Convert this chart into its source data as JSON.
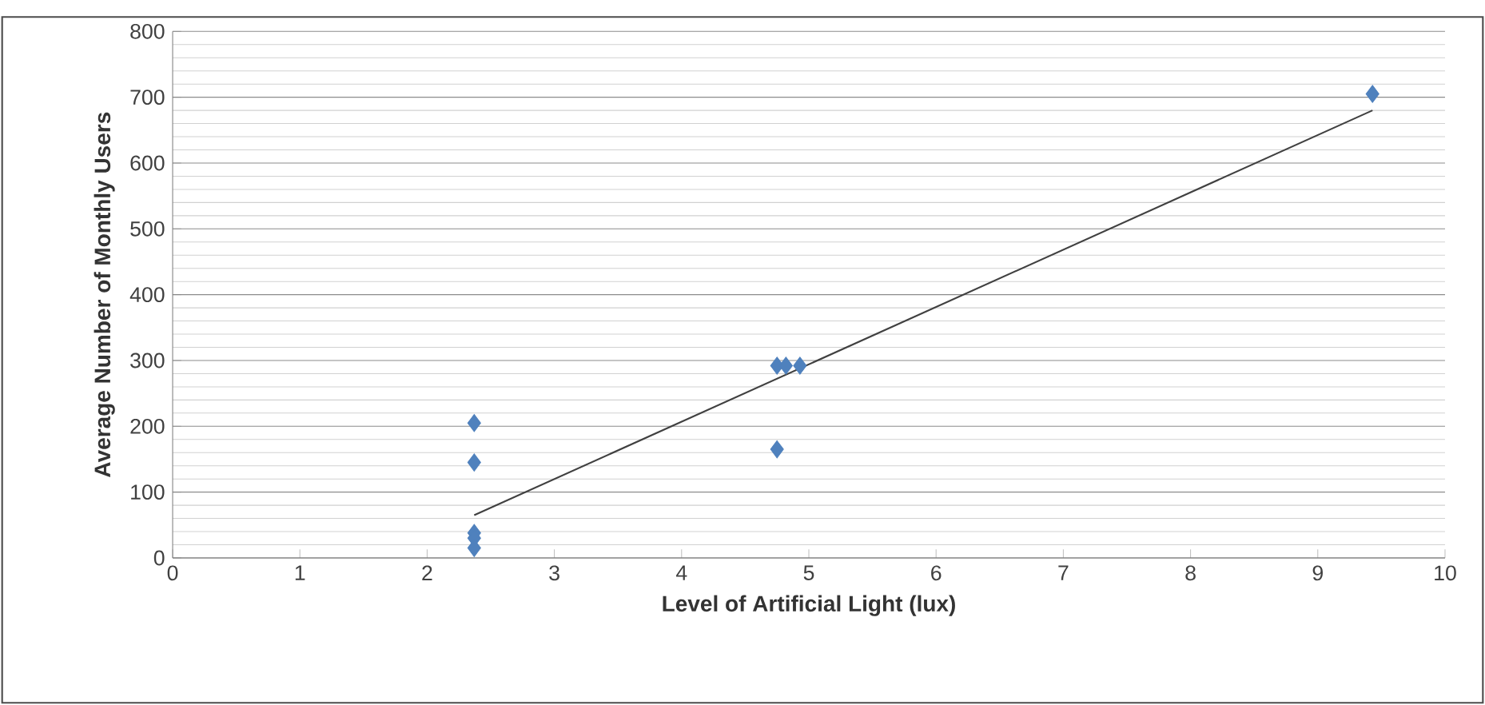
{
  "chart_data": {
    "type": "scatter",
    "xlabel": "Level of Artificial Light (lux)",
    "ylabel": "Average Number of Monthly Users",
    "xlim": [
      0,
      10
    ],
    "xticks": [
      0,
      1,
      2,
      3,
      4,
      5,
      6,
      7,
      8,
      9,
      10
    ],
    "ylim": [
      0,
      800
    ],
    "yticks": [
      0,
      100,
      200,
      300,
      400,
      500,
      600,
      700,
      800
    ],
    "grid": "y",
    "marker": "diamond",
    "series": [
      {
        "color": "#4f81bd",
        "x": [
          2.37,
          2.37,
          2.37,
          2.37,
          2.37,
          4.75,
          4.82,
          4.93,
          4.75,
          9.43
        ],
        "values": [
          205,
          145,
          38,
          30,
          15,
          292,
          292,
          292,
          165,
          705
        ]
      },
      {
        "type": "line",
        "color": "#404040",
        "marker": "none",
        "x": [
          2.37,
          9.43
        ],
        "values": [
          65,
          680
        ]
      }
    ]
  }
}
